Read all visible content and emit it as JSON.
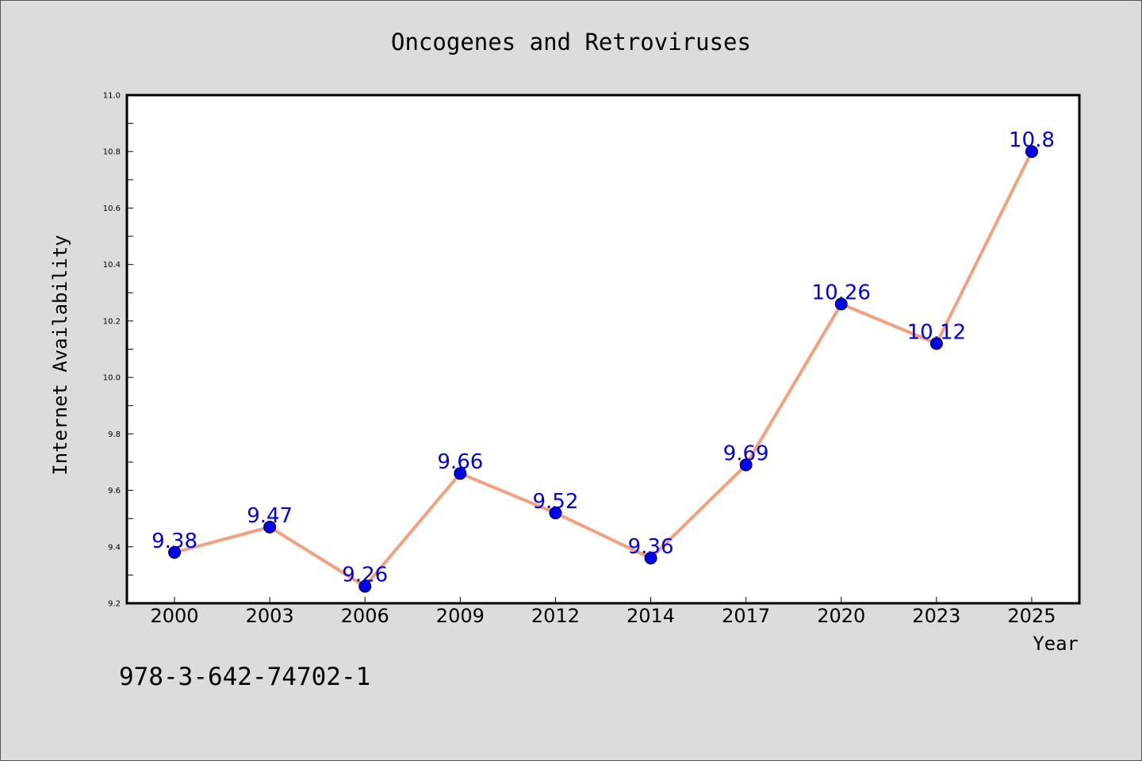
{
  "chart_data": {
    "type": "line",
    "title": "Oncogenes and Retroviruses",
    "xlabel": "Year",
    "ylabel": "Internet Availability",
    "x": [
      "2000",
      "2003",
      "2006",
      "2009",
      "2012",
      "2014",
      "2017",
      "2020",
      "2023",
      "2025"
    ],
    "series": [
      {
        "values": [
          9.38,
          9.47,
          9.26,
          9.66,
          9.52,
          9.36,
          9.69,
          10.26,
          10.12,
          10.8
        ]
      }
    ],
    "data_labels": [
      "9.38",
      "9.47",
      "9.26",
      "9.66",
      "9.52",
      "9.36",
      "9.69",
      "10.26",
      "10.12",
      "10.8"
    ],
    "ylim": [
      9.2,
      11.0
    ],
    "yticks": [
      "9.2",
      "9.4",
      "9.6",
      "9.8",
      "10.0",
      "10.2",
      "10.4",
      "10.6",
      "10.8",
      "11.0"
    ],
    "grid": false,
    "line_color": "#f4a07c",
    "marker_color": "#0000ee",
    "label_color": "#0000ee"
  },
  "footer": {
    "text": "978-3-642-74702-1"
  }
}
